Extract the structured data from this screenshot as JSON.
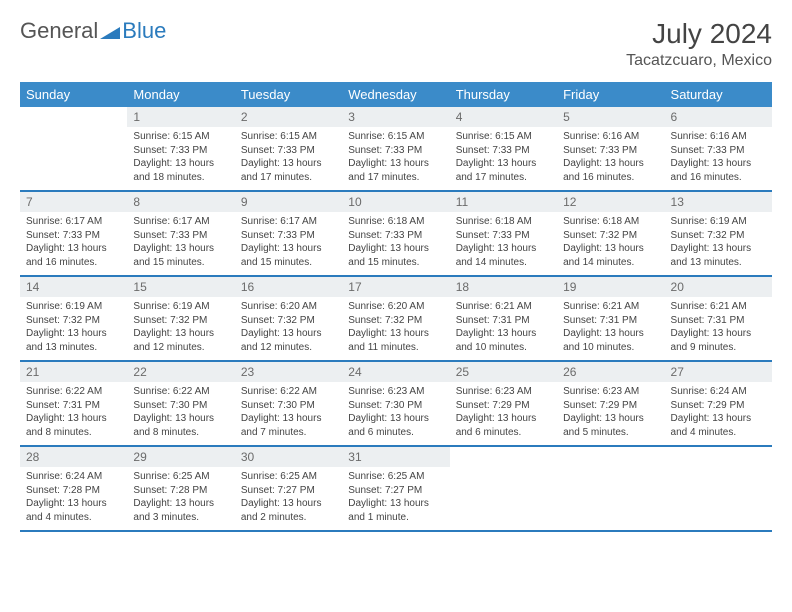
{
  "logo": {
    "part1": "General",
    "part2": "Blue"
  },
  "title": "July 2024",
  "location": "Tacatzcuaro, Mexico",
  "colors": {
    "header_bg": "#3b8bc9",
    "header_text": "#ffffff",
    "daynum_bg": "#eceff1",
    "border": "#2b7bbd",
    "logo_blue": "#2b7bbd",
    "text": "#444444"
  },
  "typography": {
    "title_fontsize": 28,
    "location_fontsize": 16,
    "dow_fontsize": 13,
    "daynum_fontsize": 12,
    "body_fontsize": 10
  },
  "days_of_week": [
    "Sunday",
    "Monday",
    "Tuesday",
    "Wednesday",
    "Thursday",
    "Friday",
    "Saturday"
  ],
  "weeks": [
    [
      {
        "n": "",
        "sr": "",
        "ss": "",
        "dl": ""
      },
      {
        "n": "1",
        "sr": "Sunrise: 6:15 AM",
        "ss": "Sunset: 7:33 PM",
        "dl": "Daylight: 13 hours and 18 minutes."
      },
      {
        "n": "2",
        "sr": "Sunrise: 6:15 AM",
        "ss": "Sunset: 7:33 PM",
        "dl": "Daylight: 13 hours and 17 minutes."
      },
      {
        "n": "3",
        "sr": "Sunrise: 6:15 AM",
        "ss": "Sunset: 7:33 PM",
        "dl": "Daylight: 13 hours and 17 minutes."
      },
      {
        "n": "4",
        "sr": "Sunrise: 6:15 AM",
        "ss": "Sunset: 7:33 PM",
        "dl": "Daylight: 13 hours and 17 minutes."
      },
      {
        "n": "5",
        "sr": "Sunrise: 6:16 AM",
        "ss": "Sunset: 7:33 PM",
        "dl": "Daylight: 13 hours and 16 minutes."
      },
      {
        "n": "6",
        "sr": "Sunrise: 6:16 AM",
        "ss": "Sunset: 7:33 PM",
        "dl": "Daylight: 13 hours and 16 minutes."
      }
    ],
    [
      {
        "n": "7",
        "sr": "Sunrise: 6:17 AM",
        "ss": "Sunset: 7:33 PM",
        "dl": "Daylight: 13 hours and 16 minutes."
      },
      {
        "n": "8",
        "sr": "Sunrise: 6:17 AM",
        "ss": "Sunset: 7:33 PM",
        "dl": "Daylight: 13 hours and 15 minutes."
      },
      {
        "n": "9",
        "sr": "Sunrise: 6:17 AM",
        "ss": "Sunset: 7:33 PM",
        "dl": "Daylight: 13 hours and 15 minutes."
      },
      {
        "n": "10",
        "sr": "Sunrise: 6:18 AM",
        "ss": "Sunset: 7:33 PM",
        "dl": "Daylight: 13 hours and 15 minutes."
      },
      {
        "n": "11",
        "sr": "Sunrise: 6:18 AM",
        "ss": "Sunset: 7:33 PM",
        "dl": "Daylight: 13 hours and 14 minutes."
      },
      {
        "n": "12",
        "sr": "Sunrise: 6:18 AM",
        "ss": "Sunset: 7:32 PM",
        "dl": "Daylight: 13 hours and 14 minutes."
      },
      {
        "n": "13",
        "sr": "Sunrise: 6:19 AM",
        "ss": "Sunset: 7:32 PM",
        "dl": "Daylight: 13 hours and 13 minutes."
      }
    ],
    [
      {
        "n": "14",
        "sr": "Sunrise: 6:19 AM",
        "ss": "Sunset: 7:32 PM",
        "dl": "Daylight: 13 hours and 13 minutes."
      },
      {
        "n": "15",
        "sr": "Sunrise: 6:19 AM",
        "ss": "Sunset: 7:32 PM",
        "dl": "Daylight: 13 hours and 12 minutes."
      },
      {
        "n": "16",
        "sr": "Sunrise: 6:20 AM",
        "ss": "Sunset: 7:32 PM",
        "dl": "Daylight: 13 hours and 12 minutes."
      },
      {
        "n": "17",
        "sr": "Sunrise: 6:20 AM",
        "ss": "Sunset: 7:32 PM",
        "dl": "Daylight: 13 hours and 11 minutes."
      },
      {
        "n": "18",
        "sr": "Sunrise: 6:21 AM",
        "ss": "Sunset: 7:31 PM",
        "dl": "Daylight: 13 hours and 10 minutes."
      },
      {
        "n": "19",
        "sr": "Sunrise: 6:21 AM",
        "ss": "Sunset: 7:31 PM",
        "dl": "Daylight: 13 hours and 10 minutes."
      },
      {
        "n": "20",
        "sr": "Sunrise: 6:21 AM",
        "ss": "Sunset: 7:31 PM",
        "dl": "Daylight: 13 hours and 9 minutes."
      }
    ],
    [
      {
        "n": "21",
        "sr": "Sunrise: 6:22 AM",
        "ss": "Sunset: 7:31 PM",
        "dl": "Daylight: 13 hours and 8 minutes."
      },
      {
        "n": "22",
        "sr": "Sunrise: 6:22 AM",
        "ss": "Sunset: 7:30 PM",
        "dl": "Daylight: 13 hours and 8 minutes."
      },
      {
        "n": "23",
        "sr": "Sunrise: 6:22 AM",
        "ss": "Sunset: 7:30 PM",
        "dl": "Daylight: 13 hours and 7 minutes."
      },
      {
        "n": "24",
        "sr": "Sunrise: 6:23 AM",
        "ss": "Sunset: 7:30 PM",
        "dl": "Daylight: 13 hours and 6 minutes."
      },
      {
        "n": "25",
        "sr": "Sunrise: 6:23 AM",
        "ss": "Sunset: 7:29 PM",
        "dl": "Daylight: 13 hours and 6 minutes."
      },
      {
        "n": "26",
        "sr": "Sunrise: 6:23 AM",
        "ss": "Sunset: 7:29 PM",
        "dl": "Daylight: 13 hours and 5 minutes."
      },
      {
        "n": "27",
        "sr": "Sunrise: 6:24 AM",
        "ss": "Sunset: 7:29 PM",
        "dl": "Daylight: 13 hours and 4 minutes."
      }
    ],
    [
      {
        "n": "28",
        "sr": "Sunrise: 6:24 AM",
        "ss": "Sunset: 7:28 PM",
        "dl": "Daylight: 13 hours and 4 minutes."
      },
      {
        "n": "29",
        "sr": "Sunrise: 6:25 AM",
        "ss": "Sunset: 7:28 PM",
        "dl": "Daylight: 13 hours and 3 minutes."
      },
      {
        "n": "30",
        "sr": "Sunrise: 6:25 AM",
        "ss": "Sunset: 7:27 PM",
        "dl": "Daylight: 13 hours and 2 minutes."
      },
      {
        "n": "31",
        "sr": "Sunrise: 6:25 AM",
        "ss": "Sunset: 7:27 PM",
        "dl": "Daylight: 13 hours and 1 minute."
      },
      {
        "n": "",
        "sr": "",
        "ss": "",
        "dl": ""
      },
      {
        "n": "",
        "sr": "",
        "ss": "",
        "dl": ""
      },
      {
        "n": "",
        "sr": "",
        "ss": "",
        "dl": ""
      }
    ]
  ]
}
